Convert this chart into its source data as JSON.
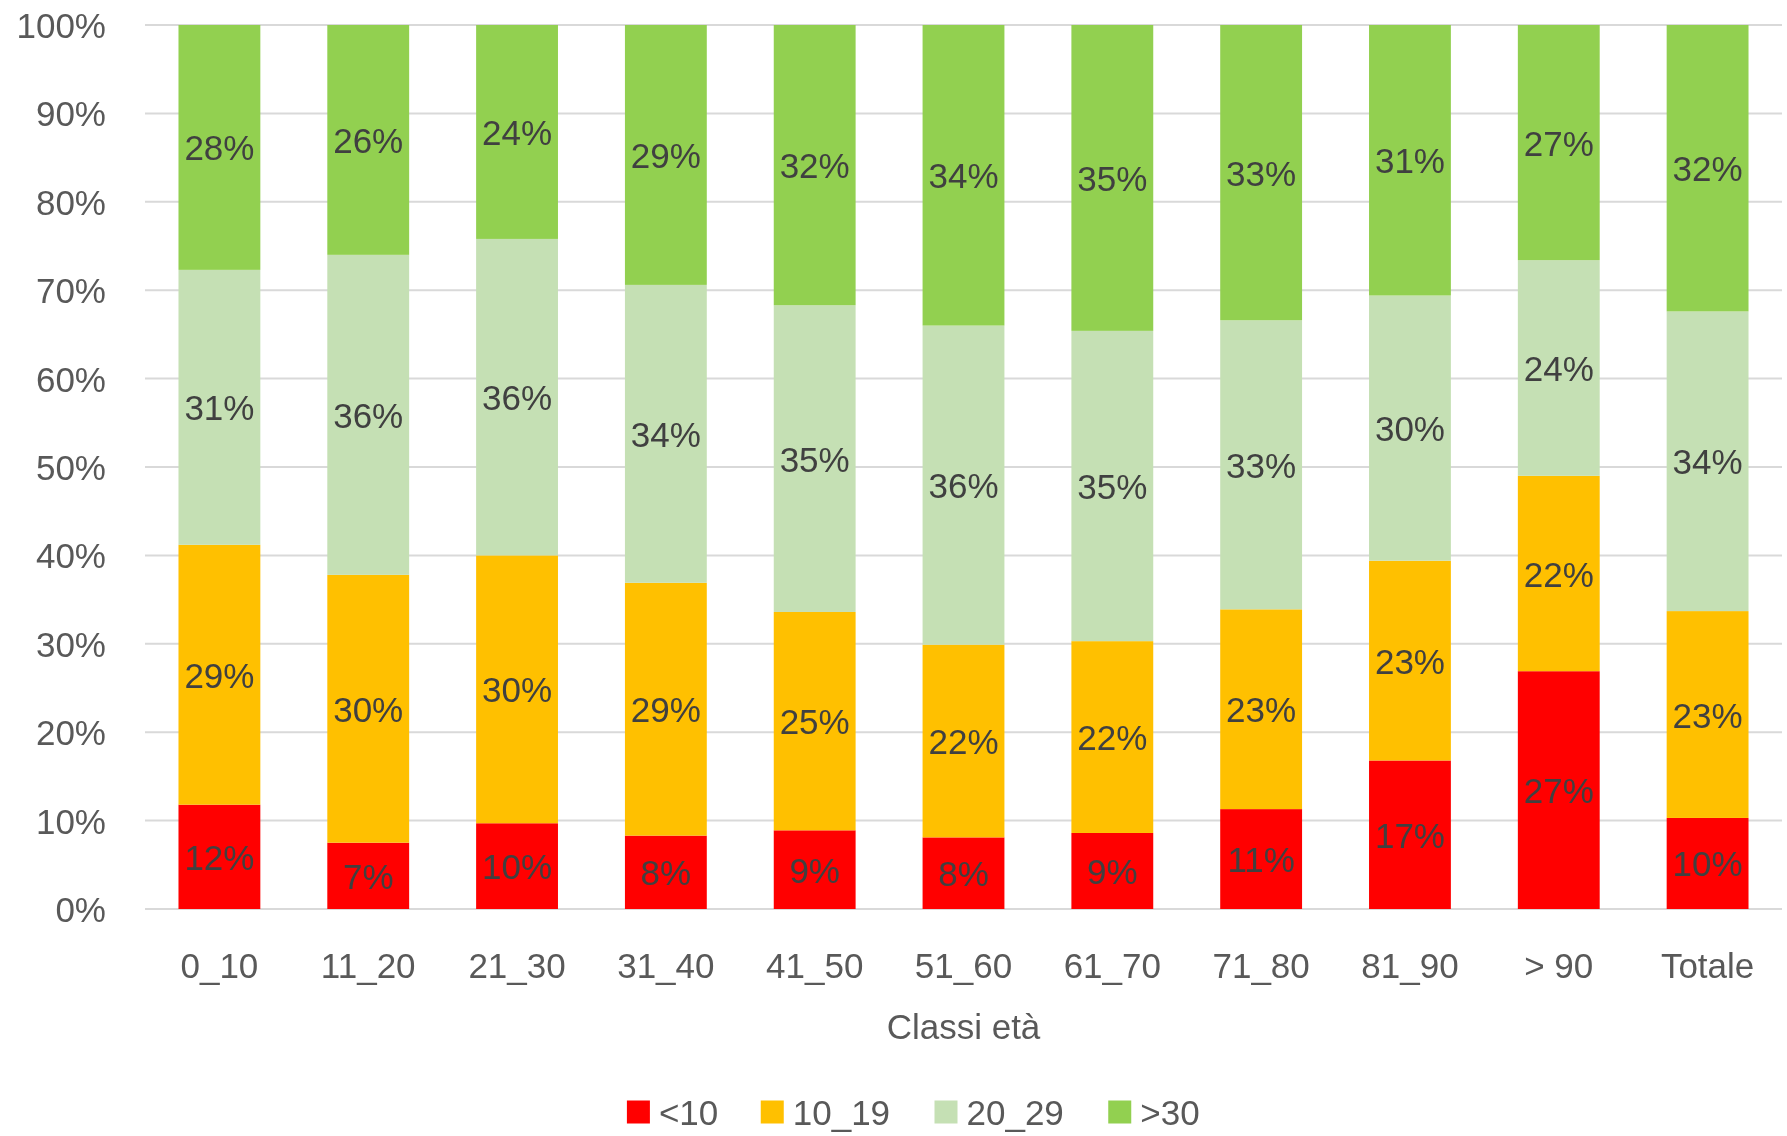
{
  "chart_data": {
    "type": "bar",
    "stacked": true,
    "categories": [
      "0_10",
      "11_20",
      "21_30",
      "31_40",
      "41_50",
      "51_60",
      "61_70",
      "71_80",
      "81_90",
      "> 90",
      "Totale"
    ],
    "xlabel": "Classi età",
    "ylim": [
      0,
      100
    ],
    "yticks": [
      {
        "value": 0,
        "label": "0%"
      },
      {
        "value": 10,
        "label": "10%"
      },
      {
        "value": 20,
        "label": "20%"
      },
      {
        "value": 30,
        "label": "30%"
      },
      {
        "value": 40,
        "label": "40%"
      },
      {
        "value": 50,
        "label": "50%"
      },
      {
        "value": 60,
        "label": "60%"
      },
      {
        "value": 70,
        "label": "70%"
      },
      {
        "value": 80,
        "label": "80%"
      },
      {
        "value": 90,
        "label": "90%"
      },
      {
        "value": 100,
        "label": "100%"
      }
    ],
    "grid": "y",
    "legend": "bottom",
    "series": [
      {
        "name": "<10",
        "color": "#ff0000",
        "values": [
          11.8,
          7.5,
          9.7,
          8.3,
          8.9,
          8.1,
          8.6,
          11.3,
          16.8,
          26.9,
          10.3
        ],
        "value_labels": [
          "12%",
          "7%",
          "10%",
          "8%",
          "9%",
          "8%",
          "9%",
          "11%",
          "17%",
          "27%",
          "10%"
        ]
      },
      {
        "name": "10_19",
        "color": "#ffc000",
        "values": [
          29.4,
          30.3,
          30.3,
          28.6,
          24.7,
          21.8,
          21.7,
          22.6,
          22.6,
          22.1,
          23.4
        ],
        "value_labels": [
          "29%",
          "30%",
          "30%",
          "29%",
          "25%",
          "22%",
          "22%",
          "23%",
          "23%",
          "22%",
          "23%"
        ]
      },
      {
        "name": "20_29",
        "color": "#c5e0b4",
        "values": [
          31.1,
          36.2,
          35.8,
          33.7,
          34.7,
          36.1,
          35.1,
          32.7,
          30.0,
          24.4,
          33.9
        ],
        "value_labels": [
          "31%",
          "36%",
          "36%",
          "34%",
          "35%",
          "36%",
          "35%",
          "33%",
          "30%",
          "24%",
          "34%"
        ]
      },
      {
        "name": ">30",
        "color": "#92d050",
        "values": [
          27.7,
          26.0,
          24.2,
          29.4,
          31.7,
          34.0,
          34.6,
          33.4,
          30.6,
          26.6,
          32.4
        ],
        "value_labels": [
          "28%",
          "26%",
          "24%",
          "29%",
          "32%",
          "34%",
          "35%",
          "33%",
          "31%",
          "27%",
          "32%"
        ]
      }
    ]
  }
}
